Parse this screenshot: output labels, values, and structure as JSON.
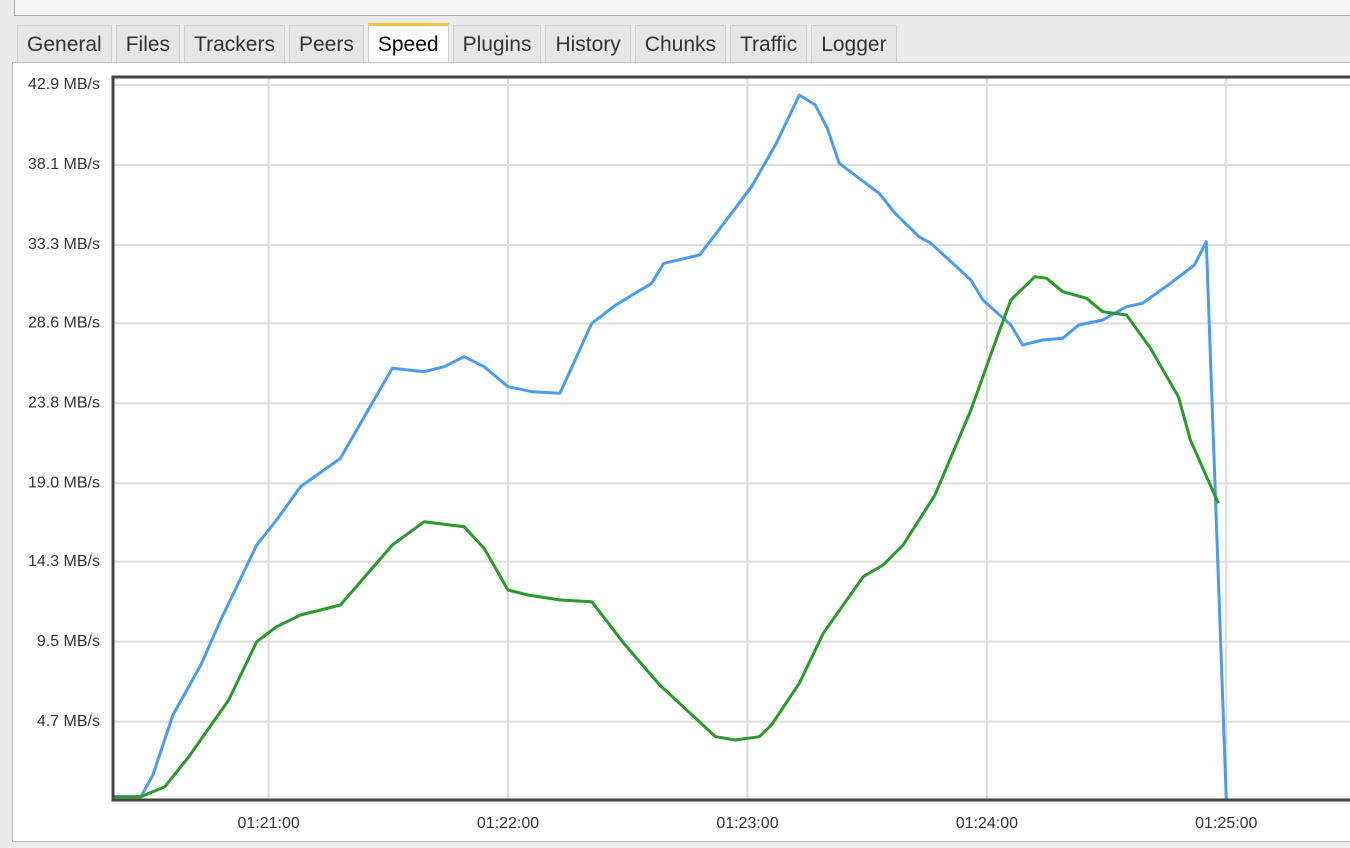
{
  "tabs": [
    "General",
    "Files",
    "Trackers",
    "Peers",
    "Speed",
    "Plugins",
    "History",
    "Chunks",
    "Traffic",
    "Logger"
  ],
  "selected_tab": 4,
  "chart_data": {
    "type": "line",
    "x": [
      "01:20:21",
      "01:20:28",
      "01:20:31",
      "01:20:34",
      "01:20:36",
      "01:20:40",
      "01:20:43",
      "01:20:48",
      "01:20:50",
      "01:20:57",
      "01:21:02",
      "01:21:08",
      "01:21:18",
      "01:21:31",
      "01:21:39",
      "01:21:44",
      "01:21:49",
      "01:21:54",
      "01:22:00",
      "01:22:05",
      "01:22:06",
      "01:22:13",
      "01:22:21",
      "01:22:27",
      "01:22:29",
      "01:22:36",
      "01:22:38",
      "01:22:39",
      "01:22:48",
      "01:22:52",
      "01:22:56",
      "01:22:57",
      "01:23:01",
      "01:23:03",
      "01:23:06",
      "01:23:07",
      "01:23:11",
      "01:23:13",
      "01:23:17",
      "01:23:19",
      "01:23:20",
      "01:23:23",
      "01:23:29",
      "01:23:33",
      "01:23:34",
      "01:23:37",
      "01:23:39",
      "01:23:43",
      "01:23:46",
      "01:23:47",
      "01:23:56",
      "01:23:59",
      "01:24:02",
      "01:24:06",
      "01:24:09",
      "01:24:12",
      "01:24:14",
      "01:24:15",
      "01:24:19",
      "01:24:23",
      "01:24:25",
      "01:24:29",
      "01:24:35",
      "01:24:39",
      "01:24:41",
      "01:24:46",
      "01:24:48",
      "01:24:51",
      "01:24:52",
      "01:24:55",
      "01:24:58",
      "01:25:00"
    ],
    "series": [
      {
        "color": "#4a9cf0",
        "values": [
          0.2,
          0.2,
          1.5,
          null,
          5.1,
          null,
          8.1,
          10.8,
          null,
          15.3,
          16.8,
          18.8,
          20.5,
          25.9,
          25.7,
          26.0,
          26.6,
          26.0,
          24.8,
          null,
          24.5,
          24.4,
          28.6,
          29.7,
          null,
          31.0,
          null,
          32.2,
          32.7,
          null,
          35.2,
          null,
          36.8,
          null,
          null,
          39.3,
          41.3,
          42.3,
          41.7,
          null,
          40.3,
          38.2,
          null,
          36.4,
          null,
          35.2,
          null,
          33.8,
          33.4,
          null,
          31.2,
          30.0,
          null,
          28.5,
          27.3,
          null,
          27.6,
          null,
          27.7,
          28.5,
          null,
          28.8,
          29.6,
          29.8,
          null,
          31.0,
          null,
          null,
          32.1,
          33.5,
          null,
          0
        ]
      },
      {
        "color": "#2a9a2a",
        "values": [
          0.2,
          0.2,
          null,
          0.8,
          null,
          2.6,
          null,
          null,
          6.0,
          9.5,
          10.4,
          11.1,
          11.7,
          15.3,
          16.7,
          null,
          16.4,
          15.1,
          12.6,
          12.3,
          null,
          12.0,
          11.9,
          null,
          9.4,
          null,
          6.9,
          null,
          null,
          3.8,
          null,
          3.6,
          null,
          3.8,
          4.5,
          null,
          null,
          7.0,
          null,
          10.0,
          null,
          null,
          13.4,
          null,
          14.1,
          null,
          15.3,
          null,
          null,
          18.3,
          23.4,
          null,
          27.4,
          30.0,
          null,
          31.4,
          null,
          31.3,
          30.5,
          null,
          30.1,
          29.3,
          29.1,
          null,
          27.1,
          null,
          24.2,
          21.6,
          null,
          null,
          17.8,
          null
        ]
      }
    ],
    "xlim": [
      "01:20:21",
      "01:25:31"
    ],
    "xticks": [
      "01:21:00",
      "01:22:00",
      "01:23:00",
      "01:24:00",
      "01:25:00"
    ],
    "ylim": [
      0,
      42.9
    ],
    "yticks": [
      {
        "value": 4.7,
        "label": "4.7 MB/s"
      },
      {
        "value": 9.5,
        "label": "9.5 MB/s"
      },
      {
        "value": 14.3,
        "label": "14.3 MB/s"
      },
      {
        "value": 19.0,
        "label": "19.0 MB/s"
      },
      {
        "value": 23.8,
        "label": "23.8 MB/s"
      },
      {
        "value": 28.6,
        "label": "28.6 MB/s"
      },
      {
        "value": 33.3,
        "label": "33.3 MB/s"
      },
      {
        "value": 38.1,
        "label": "38.1 MB/s"
      },
      {
        "value": 42.9,
        "label": "42.9 MB/s"
      }
    ],
    "grid": true
  }
}
